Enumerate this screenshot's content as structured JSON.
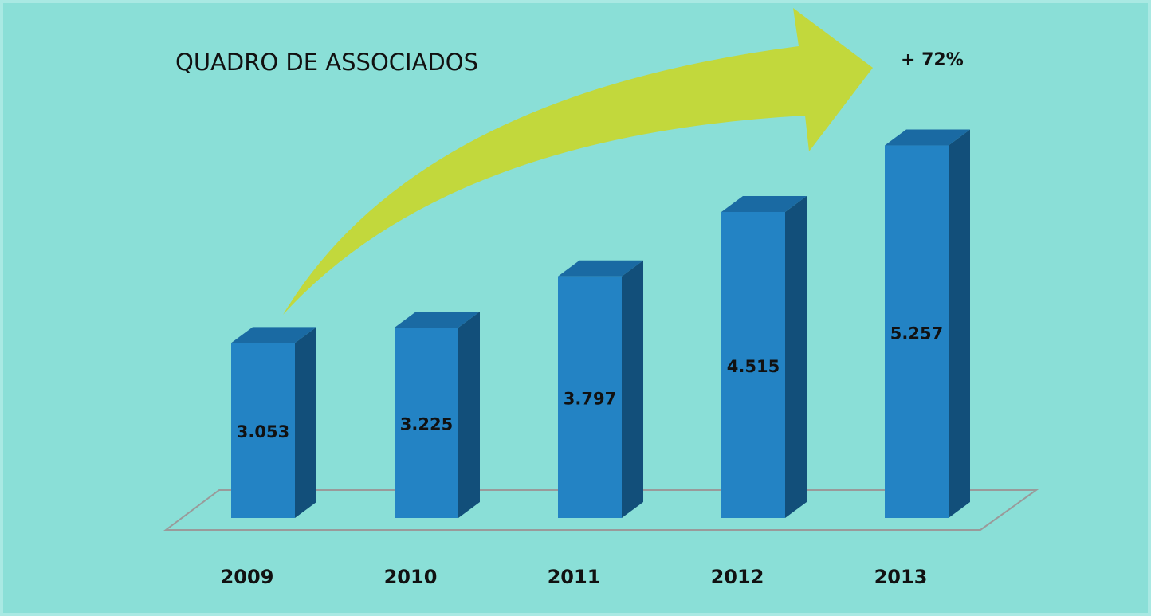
{
  "chart_data": {
    "type": "bar3d",
    "title": "QUADRO DE ASSOCIADOS",
    "annotation": "+ 72%",
    "categories": [
      "2009",
      "2010",
      "2011",
      "2012",
      "2013"
    ],
    "values": [
      3053,
      3225,
      3797,
      4515,
      5257
    ],
    "value_labels": [
      "3.053",
      "3.225",
      "3.797",
      "4.515",
      "5.257"
    ],
    "color": "#2383c4",
    "ylim": [
      1100,
      6000
    ]
  }
}
